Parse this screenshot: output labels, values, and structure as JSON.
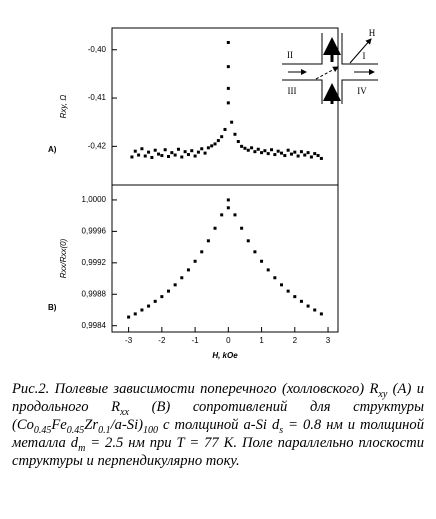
{
  "chart_data": [
    {
      "type": "scatter",
      "y_label": "Rxy, Ω",
      "panel_label": "A)",
      "inset_labels": [
        "II",
        "I",
        "III",
        "IV",
        "H"
      ],
      "xlim": [
        -3.5,
        3.3
      ],
      "ylim": [
        -0.428,
        -0.3955
      ],
      "yticks": [
        {
          "value": -0.4,
          "label": "-0,40"
        },
        {
          "value": -0.41,
          "label": "-0,41"
        },
        {
          "value": -0.42,
          "label": "-0,42"
        }
      ],
      "color": "#000000",
      "x": [
        -2.9,
        -2.8,
        -2.7,
        -2.6,
        -2.5,
        -2.4,
        -2.3,
        -2.2,
        -2.1,
        -2.0,
        -1.9,
        -1.8,
        -1.7,
        -1.6,
        -1.5,
        -1.4,
        -1.3,
        -1.2,
        -1.1,
        -1.0,
        -0.9,
        -0.8,
        -0.7,
        -0.6,
        -0.5,
        -0.4,
        -0.3,
        -0.2,
        -0.1,
        0,
        0,
        0,
        0,
        0.1,
        0.2,
        0.3,
        0.4,
        0.5,
        0.6,
        0.7,
        0.8,
        0.9,
        1.0,
        1.1,
        1.2,
        1.3,
        1.4,
        1.5,
        1.6,
        1.7,
        1.8,
        1.9,
        2.0,
        2.1,
        2.2,
        2.3,
        2.4,
        2.5,
        2.6,
        2.7,
        2.8
      ],
      "values": [
        -0.4222,
        -0.421,
        -0.4218,
        -0.4205,
        -0.422,
        -0.4212,
        -0.4223,
        -0.4208,
        -0.4216,
        -0.4219,
        -0.4207,
        -0.4221,
        -0.4213,
        -0.4218,
        -0.4206,
        -0.4222,
        -0.4211,
        -0.4217,
        -0.4209,
        -0.422,
        -0.4212,
        -0.4205,
        -0.4214,
        -0.4203,
        -0.4199,
        -0.4195,
        -0.4188,
        -0.418,
        -0.4165,
        -0.3985,
        -0.4035,
        -0.408,
        -0.411,
        -0.415,
        -0.4175,
        -0.419,
        -0.42,
        -0.4204,
        -0.4208,
        -0.4203,
        -0.4211,
        -0.4206,
        -0.4213,
        -0.4209,
        -0.4215,
        -0.4207,
        -0.4217,
        -0.421,
        -0.4214,
        -0.4219,
        -0.4208,
        -0.4216,
        -0.4212,
        -0.422,
        -0.4211,
        -0.4218,
        -0.4213,
        -0.4222,
        -0.4215,
        -0.4219,
        -0.4225
      ]
    },
    {
      "type": "scatter",
      "y_label": "Rxx/Rxx(0)",
      "x_label": "H, kOe",
      "panel_label": "B)",
      "xlim": [
        -3.5,
        3.3
      ],
      "ylim": [
        0.99832,
        1.00019
      ],
      "xticks": [
        -3,
        -2,
        -1,
        0,
        1,
        2,
        3
      ],
      "yticks": [
        {
          "value": 1.0,
          "label": "1,0000"
        },
        {
          "value": 0.9996,
          "label": "0,9996"
        },
        {
          "value": 0.9992,
          "label": "0,9992"
        },
        {
          "value": 0.9988,
          "label": "0,9988"
        },
        {
          "value": 0.9984,
          "label": "0,9984"
        }
      ],
      "color": "#000000",
      "x": [
        -3.0,
        -2.8,
        -2.6,
        -2.4,
        -2.2,
        -2.0,
        -1.8,
        -1.6,
        -1.4,
        -1.2,
        -1.0,
        -0.8,
        -0.6,
        -0.4,
        -0.2,
        0,
        0,
        0.2,
        0.4,
        0.6,
        0.8,
        1.0,
        1.2,
        1.4,
        1.6,
        1.8,
        2.0,
        2.2,
        2.4,
        2.6,
        2.8
      ],
      "values": [
        0.99851,
        0.99855,
        0.9986,
        0.99865,
        0.99871,
        0.99877,
        0.99884,
        0.99892,
        0.99901,
        0.99911,
        0.99922,
        0.99934,
        0.99948,
        0.99964,
        0.99981,
        1.0,
        0.9999,
        0.99981,
        0.99964,
        0.99948,
        0.99934,
        0.99922,
        0.99911,
        0.99901,
        0.99892,
        0.99884,
        0.99877,
        0.99871,
        0.99865,
        0.9986,
        0.99855
      ]
    }
  ],
  "caption": [
    "Рис.2. Полевые зависимости поперечного (холловского) R",
    "xy",
    " (A) и продольного R",
    "xx",
    " (B) сопротивлений для структуры (Co",
    "0.45",
    "Fe",
    "0.45",
    "Zr",
    "0.1",
    "/a-Si)",
    "100",
    " с толщиной a-Si d",
    "s",
    " = 0.8 нм и толщиной металла d",
    "m",
    " = 2.5 нм при T = 77 K. Поле параллельно плоскости структуры и перпендикулярно току."
  ]
}
